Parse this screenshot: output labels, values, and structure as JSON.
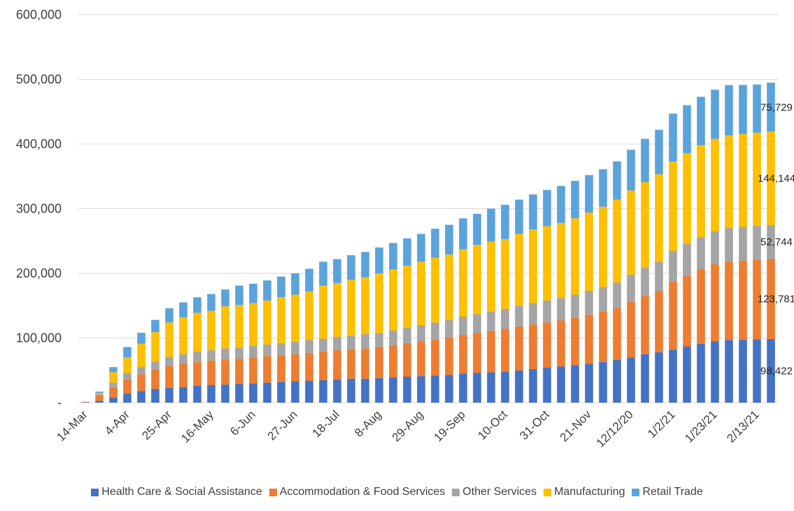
{
  "chart_data": {
    "type": "bar",
    "stacked": true,
    "title": "",
    "xlabel": "",
    "ylabel": "",
    "ylim": [
      0,
      600000
    ],
    "y_ticks": [
      "-",
      "100,000",
      "200,000",
      "300,000",
      "400,000",
      "500,000",
      "600,000"
    ],
    "grid": "horizontal",
    "legend_position": "bottom",
    "x_tick_labels": [
      "14-Mar",
      "4-Apr",
      "25-Apr",
      "16-May",
      "6-Jun",
      "27-Jun",
      "18-Jul",
      "8-Aug",
      "29-Aug",
      "19-Sep",
      "10-Oct",
      "31-Oct",
      "21-Nov",
      "12/12/20",
      "1/2/21",
      "1/23/21",
      "2/13/21"
    ],
    "totals": [
      1500,
      17000,
      55000,
      86000,
      108000,
      128000,
      146000,
      155000,
      163000,
      168000,
      175000,
      181000,
      184000,
      189000,
      195000,
      200000,
      207000,
      218000,
      222000,
      228000,
      233000,
      240000,
      247000,
      254000,
      261000,
      269000,
      275000,
      285000,
      292000,
      300000,
      306000,
      314000,
      322000,
      329000,
      335000,
      343000,
      352000,
      361000,
      373000,
      391000,
      408000,
      422000,
      447000,
      460000,
      473000,
      484000,
      491000,
      491000,
      492000,
      494820
    ],
    "series": [
      {
        "name": "Health Care & Social Assistance",
        "color": "#4472C4",
        "values": [
          500,
          3000,
          8000,
          14000,
          18000,
          21000,
          23000,
          24000,
          26000,
          27000,
          28000,
          29000,
          30000,
          31000,
          32000,
          33000,
          34000,
          35000,
          36000,
          37000,
          37000,
          38000,
          39000,
          40000,
          41000,
          42000,
          43000,
          45000,
          46000,
          47000,
          48000,
          50000,
          52000,
          54000,
          56000,
          58000,
          60000,
          63000,
          66000,
          70000,
          75000,
          78000,
          82000,
          87000,
          91000,
          95000,
          97000,
          97500,
          98000,
          98422
        ]
      },
      {
        "name": "Accommodation & Food Services",
        "color": "#ED7D31",
        "values": [
          500,
          8000,
          16000,
          22000,
          26000,
          30000,
          34000,
          36000,
          37000,
          38000,
          39000,
          39000,
          40000,
          41000,
          41000,
          42000,
          43000,
          44000,
          45000,
          46000,
          47000,
          48000,
          50000,
          52000,
          54000,
          56000,
          58000,
          60000,
          62000,
          64000,
          66000,
          68000,
          69000,
          70000,
          71000,
          73000,
          76000,
          78000,
          80000,
          86000,
          90000,
          95000,
          105000,
          110000,
          115000,
          119000,
          121000,
          122000,
          123000,
          123781
        ]
      },
      {
        "name": "Other Services",
        "color": "#A5A5A5",
        "values": [
          200,
          2000,
          7000,
          10000,
          11000,
          13000,
          14000,
          15000,
          16000,
          16000,
          17000,
          17000,
          18000,
          18000,
          19000,
          19000,
          20000,
          20000,
          21000,
          21000,
          22000,
          22000,
          23000,
          24000,
          25000,
          26000,
          27000,
          28000,
          29000,
          30000,
          31000,
          32000,
          33000,
          34000,
          35000,
          36000,
          37000,
          38000,
          40000,
          42000,
          44000,
          45000,
          48000,
          49000,
          50000,
          51000,
          52000,
          52300,
          52500,
          52744
        ]
      },
      {
        "name": "Manufacturing",
        "color": "#FFC000",
        "values": [
          200,
          2000,
          16000,
          24000,
          36000,
          45000,
          53000,
          57000,
          60000,
          61000,
          65000,
          66000,
          66000,
          68000,
          71000,
          73000,
          75000,
          82000,
          83000,
          86000,
          88000,
          92000,
          94000,
          96000,
          98000,
          100000,
          101000,
          104000,
          107000,
          108000,
          108000,
          111000,
          114000,
          115000,
          116000,
          118000,
          121000,
          124000,
          128000,
          130000,
          132000,
          135000,
          138000,
          140000,
          142000,
          143000,
          143500,
          143800,
          144000,
          144144
        ]
      },
      {
        "name": "Retail Trade",
        "color": "#5BA3DC",
        "values": [
          100,
          2000,
          8000,
          16000,
          17000,
          19000,
          22000,
          23000,
          24000,
          26000,
          26000,
          30000,
          30000,
          31000,
          32000,
          33000,
          35000,
          37000,
          37000,
          38000,
          39000,
          40000,
          41000,
          42000,
          43000,
          45000,
          46000,
          48000,
          48000,
          51000,
          53000,
          53000,
          54000,
          56000,
          57000,
          58000,
          58000,
          58000,
          59000,
          63000,
          67000,
          69000,
          74000,
          74000,
          75000,
          76000,
          77500,
          75700,
          74500,
          75729
        ]
      }
    ],
    "data_labels": [
      {
        "series": "Health Care & Social Assistance",
        "text": "98,422"
      },
      {
        "series": "Accommodation & Food Services",
        "text": "123,781"
      },
      {
        "series": "Other Services",
        "text": "52,744"
      },
      {
        "series": "Manufacturing",
        "text": "144,144"
      },
      {
        "series": "Retail Trade",
        "text": "75,729"
      }
    ]
  }
}
